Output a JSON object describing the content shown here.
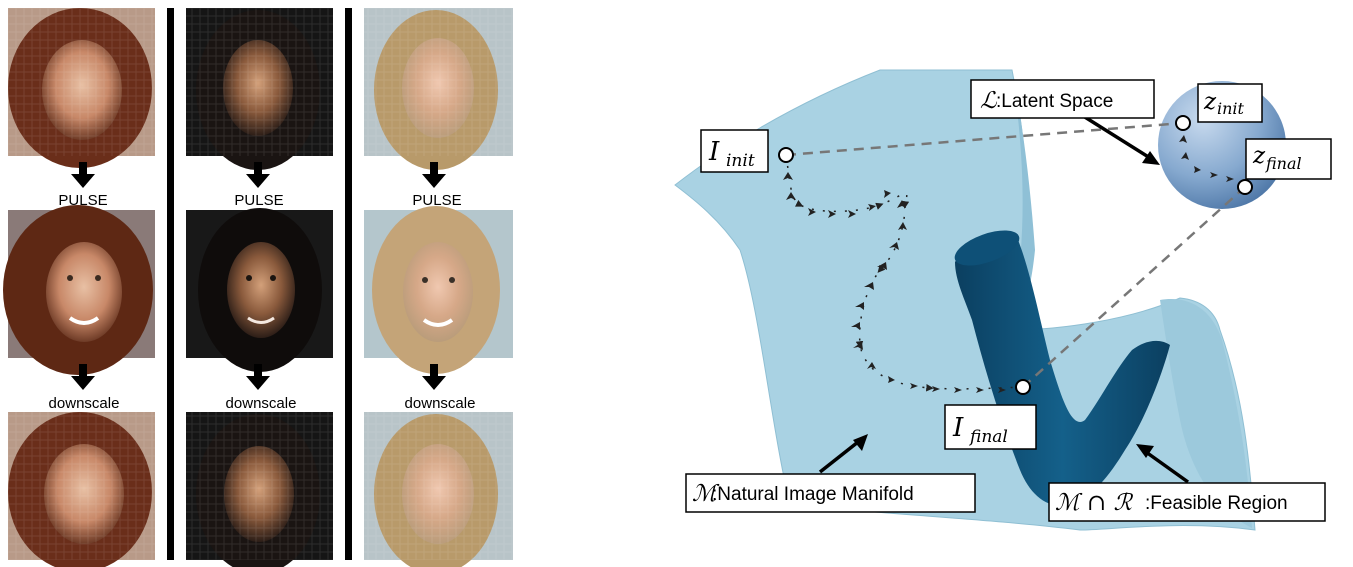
{
  "columns": [
    {
      "step1_label": "PULSE",
      "step2_label": "downscale",
      "face": "red-haired woman"
    },
    {
      "step1_label": "PULSE",
      "step2_label": "downscale",
      "face": "dark-haired woman"
    },
    {
      "step1_label": "PULSE",
      "step2_label": "downscale",
      "face": "blonde woman"
    }
  ],
  "diagram": {
    "i_init": {
      "base": "I",
      "sub": "init"
    },
    "i_final": {
      "base": "I",
      "sub": "final"
    },
    "z_init": {
      "base": "z",
      "sub": "init"
    },
    "z_final": {
      "base": "z",
      "sub": "final"
    },
    "latent_space": {
      "symbol": "ℒ",
      "text": ":Latent Space"
    },
    "manifold": {
      "symbol": "ℳ",
      "text": ":Natural Image Manifold"
    },
    "feasible": {
      "symbol": "ℳ ∩ ℛ",
      "text": ":Feasible Region"
    }
  },
  "colors": {
    "manifold": "#a9d2e3",
    "manifold_dark": "#7fb3c9",
    "feasible": "#0d4a6e",
    "sphere": "#7aa3cc"
  }
}
